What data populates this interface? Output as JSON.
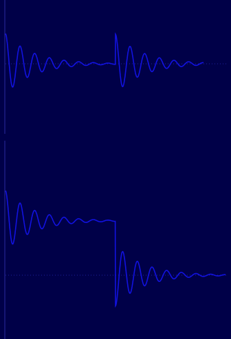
{
  "chart": {
    "title": "",
    "title_color": "#ff0000",
    "corner_label": "",
    "colors": {
      "background": "#000048",
      "trace": "#1212e0",
      "baseline": "#2020a0",
      "axis": "#2a2aa0",
      "label": "#5a5acc"
    }
  },
  "chart_data": [
    {
      "type": "line",
      "x_range": [
        0,
        2
      ],
      "grid": false,
      "series": [
        {
          "values": {
            "step_times": [
              0,
              1
            ],
            "step_amplitudes": [
              1,
              1
            ],
            "decay": 4.0,
            "frequency": 7.5,
            "levels": [
              0,
              0
            ]
          }
        }
      ]
    },
    {
      "type": "line",
      "x_range": [
        0,
        2
      ],
      "grid": false,
      "series": [
        {
          "values": {
            "step_times": [
              0,
              1
            ],
            "step_amplitudes": [
              1,
              -1
            ],
            "decay": 4.0,
            "frequency": 7.5,
            "levels": [
              1,
              0
            ]
          }
        }
      ]
    }
  ]
}
